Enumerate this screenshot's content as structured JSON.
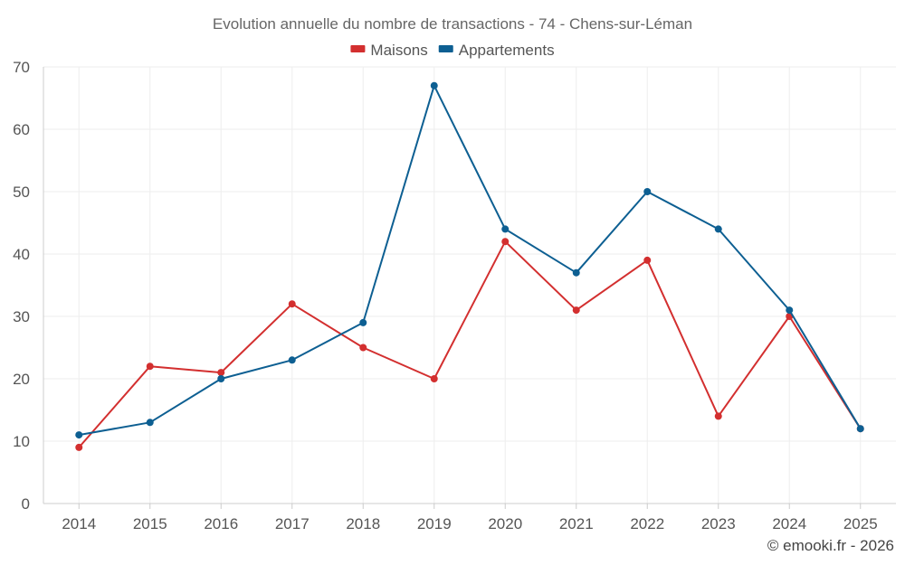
{
  "chart_data": {
    "type": "line",
    "title": "Evolution annuelle du nombre de transactions - 74 - Chens-sur-Léman",
    "categories": [
      "2014",
      "2015",
      "2016",
      "2017",
      "2018",
      "2019",
      "2020",
      "2021",
      "2022",
      "2023",
      "2024",
      "2025"
    ],
    "ylim": [
      0,
      70
    ],
    "yticks": [
      0,
      10,
      20,
      30,
      40,
      50,
      60,
      70
    ],
    "xlabel": "",
    "ylabel": "",
    "grid": true,
    "legend_position": "top-center",
    "series": [
      {
        "name": "Maisons",
        "color": "#d32f2f",
        "values": [
          9,
          22,
          21,
          32,
          25,
          20,
          42,
          31,
          39,
          14,
          30,
          12
        ]
      },
      {
        "name": "Appartements",
        "color": "#0d5f92",
        "values": [
          11,
          13,
          20,
          23,
          29,
          67,
          44,
          37,
          50,
          44,
          31,
          12
        ]
      }
    ]
  },
  "credit": "© emooki.fr - 2026"
}
